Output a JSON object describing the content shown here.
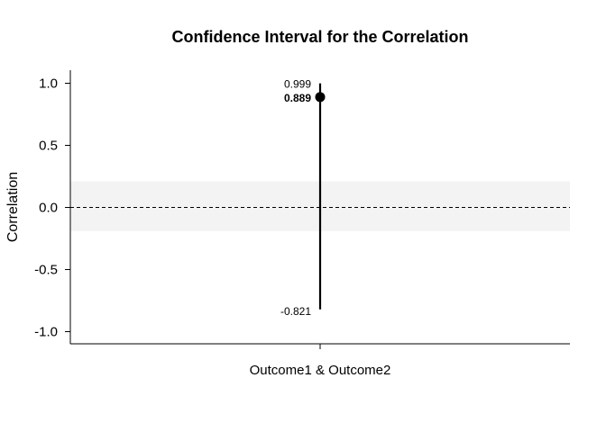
{
  "chart_data": {
    "type": "scatter",
    "title": "Confidence Interval for the Correlation",
    "xlabel": "",
    "ylabel": "Correlation",
    "categories": [
      "Outcome1 & Outcome2"
    ],
    "ylim": [
      -1.1,
      1.1
    ],
    "yticks": [
      1.0,
      0.5,
      0.0,
      -0.5,
      -1.0
    ],
    "ytick_labels": [
      "1.0",
      "0.5",
      "0.0",
      "-0.5",
      "-1.0"
    ],
    "reference_band": [
      -0.19,
      0.21
    ],
    "reference_line": 0.0,
    "points": [
      {
        "category": "Outcome1 & Outcome2",
        "estimate": 0.889,
        "lower": -0.821,
        "upper": 0.999,
        "estimate_label": "0.889",
        "lower_label": "-0.821",
        "upper_label": "0.999"
      }
    ],
    "grid": false,
    "colors": {
      "band": "#f3f3f3",
      "marks": "#000000"
    }
  }
}
